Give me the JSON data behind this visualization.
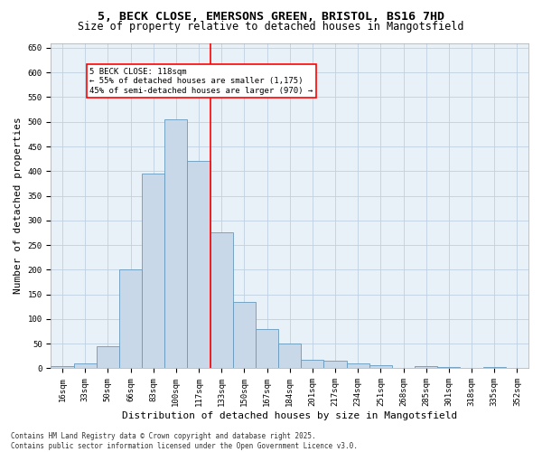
{
  "title1": "5, BECK CLOSE, EMERSONS GREEN, BRISTOL, BS16 7HD",
  "title2": "Size of property relative to detached houses in Mangotsfield",
  "xlabel": "Distribution of detached houses by size in Mangotsfield",
  "ylabel": "Number of detached properties",
  "footer1": "Contains HM Land Registry data © Crown copyright and database right 2025.",
  "footer2": "Contains public sector information licensed under the Open Government Licence v3.0.",
  "categories": [
    "16sqm",
    "33sqm",
    "50sqm",
    "66sqm",
    "83sqm",
    "100sqm",
    "117sqm",
    "133sqm",
    "150sqm",
    "167sqm",
    "184sqm",
    "201sqm",
    "217sqm",
    "234sqm",
    "251sqm",
    "268sqm",
    "285sqm",
    "301sqm",
    "318sqm",
    "335sqm",
    "352sqm"
  ],
  "values": [
    5,
    10,
    45,
    200,
    395,
    505,
    420,
    275,
    135,
    80,
    50,
    18,
    15,
    10,
    7,
    0,
    5,
    3,
    0,
    2,
    0
  ],
  "bar_color": "#c8d8e8",
  "bar_edge_color": "#6699bb",
  "vline_color": "red",
  "annotation_text": "5 BECK CLOSE: 118sqm\n← 55% of detached houses are smaller (1,175)\n45% of semi-detached houses are larger (970) →",
  "annotation_box_color": "white",
  "annotation_box_edge_color": "red",
  "ylim": [
    0,
    660
  ],
  "yticks": [
    0,
    50,
    100,
    150,
    200,
    250,
    300,
    350,
    400,
    450,
    500,
    550,
    600,
    650
  ],
  "grid_color": "#c0d0e0",
  "bg_color": "#e8f0f8",
  "title1_fontsize": 9.5,
  "title2_fontsize": 8.5,
  "tick_fontsize": 6.5,
  "label_fontsize": 8,
  "footer_fontsize": 5.5
}
